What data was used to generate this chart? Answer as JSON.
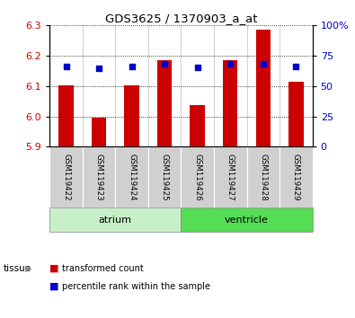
{
  "title": "GDS3625 / 1370903_a_at",
  "samples": [
    "GSM119422",
    "GSM119423",
    "GSM119424",
    "GSM119425",
    "GSM119426",
    "GSM119427",
    "GSM119428",
    "GSM119429"
  ],
  "red_values": [
    6.103,
    5.997,
    6.103,
    6.185,
    6.036,
    6.185,
    6.285,
    6.115
  ],
  "blue_values": [
    6.165,
    6.16,
    6.165,
    6.175,
    6.162,
    6.175,
    6.175,
    6.165
  ],
  "y_min": 5.9,
  "y_max": 6.3,
  "y_ticks_left": [
    5.9,
    6.0,
    6.1,
    6.2,
    6.3
  ],
  "y_ticks_right_pct": [
    0,
    25,
    50,
    75,
    100
  ],
  "y_ticks_right_labels": [
    "0",
    "25",
    "50",
    "75",
    "100%"
  ],
  "groups": [
    {
      "label": "atrium",
      "samples": [
        0,
        1,
        2,
        3
      ],
      "color": "#c8f0c8"
    },
    {
      "label": "ventricle",
      "samples": [
        4,
        5,
        6,
        7
      ],
      "color": "#55dd55"
    }
  ],
  "bar_color": "#cc0000",
  "blue_color": "#0000cc",
  "baseline": 5.9,
  "tissue_label": "tissue",
  "legend_red": "transformed count",
  "legend_blue": "percentile rank within the sample",
  "background_color": "#ffffff",
  "sample_box_color": "#d0d0d0",
  "tick_color_left": "#cc0000",
  "tick_color_right": "#0000cc",
  "bar_width": 0.45
}
